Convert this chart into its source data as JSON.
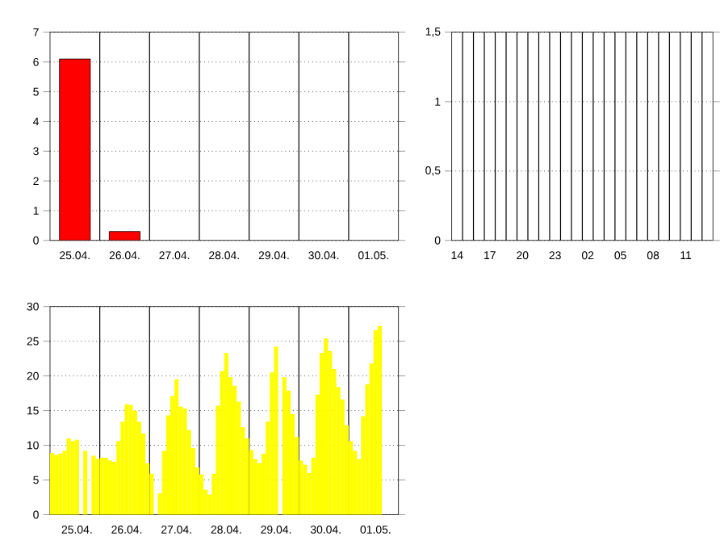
{
  "chart_data": [
    {
      "type": "bar",
      "categories": [
        "25.04.",
        "26.04.",
        "27.04.",
        "28.04.",
        "29.04.",
        "30.04.",
        "01.05."
      ],
      "values": [
        6.1,
        0.3,
        0,
        0,
        0,
        0,
        0
      ],
      "color": "#ff0000",
      "ylim": [
        0,
        7
      ],
      "yticks": [
        0,
        1,
        2,
        3,
        4,
        5,
        6,
        7
      ],
      "grid": true
    },
    {
      "type": "bar",
      "categories": [
        "14",
        null,
        null,
        "17",
        null,
        null,
        "20",
        null,
        null,
        "23",
        null,
        null,
        "02",
        null,
        null,
        "05",
        null,
        null,
        "08",
        null,
        null,
        "11",
        null,
        null
      ],
      "values": [
        0,
        0,
        0,
        0,
        0,
        0,
        0,
        0,
        0,
        0,
        0,
        0,
        0,
        0,
        0,
        0,
        0,
        0,
        0,
        0,
        0,
        0,
        0,
        0
      ],
      "color": "#ff0000",
      "ylim": [
        0,
        1.5
      ],
      "yticks": [
        0,
        {
          "value": 0.5,
          "label": "0,5"
        },
        1,
        {
          "value": 1.5,
          "label": "1,5"
        }
      ],
      "grid": true
    },
    {
      "type": "bar",
      "categories": [
        null,
        null,
        null,
        null,
        null,
        null,
        "25.04.",
        null,
        null,
        null,
        null,
        null,
        null,
        null,
        null,
        null,
        null,
        null,
        "26.04.",
        null,
        null,
        null,
        null,
        null,
        null,
        null,
        null,
        null,
        null,
        null,
        "27.04.",
        null,
        null,
        null,
        null,
        null,
        null,
        null,
        null,
        null,
        null,
        null,
        "28.04.",
        null,
        null,
        null,
        null,
        null,
        null,
        null,
        null,
        null,
        null,
        null,
        "29.04.",
        null,
        null,
        null,
        null,
        null,
        null,
        null,
        null,
        null,
        null,
        null,
        "30.04.",
        null,
        null,
        null,
        null,
        null,
        null,
        null,
        null,
        null,
        null,
        null,
        "01.05.",
        null,
        null,
        null,
        null,
        null
      ],
      "values": [
        8.9,
        8.6,
        8.8,
        9.2,
        11,
        10.6,
        10.8,
        null,
        9.2,
        null,
        8.5,
        8.0,
        8.2,
        8.2,
        7.8,
        7.6,
        10.6,
        13.4,
        15.9,
        15.8,
        15.0,
        13.4,
        11.7,
        7.4,
        5.9,
        null,
        3.1,
        9.2,
        14.3,
        17.1,
        19.5,
        15.6,
        15.3,
        12.2,
        9.6,
        6.8,
        5.8,
        3.6,
        2.9,
        5.9,
        15.7,
        20.7,
        23.3,
        19.8,
        18.6,
        16.3,
        12.6,
        11.0,
        9.3,
        8.0,
        7.4,
        8.8,
        13.4,
        20.5,
        24.2,
        null,
        19.8,
        17.9,
        14.5,
        11.2,
        7.8,
        7.2,
        6.0,
        8.2,
        17.3,
        23.3,
        25.4,
        23.6,
        21.0,
        18.4,
        16.6,
        12.9,
        10.6,
        9.2,
        8.0,
        14.2,
        18.8,
        21.8,
        26.6,
        27.2,
        null,
        null,
        null,
        null
      ],
      "color": "#ffff00",
      "ylim": [
        0,
        30
      ],
      "yticks": [
        0,
        5,
        10,
        15,
        20,
        25,
        30
      ],
      "grid": true
    }
  ]
}
